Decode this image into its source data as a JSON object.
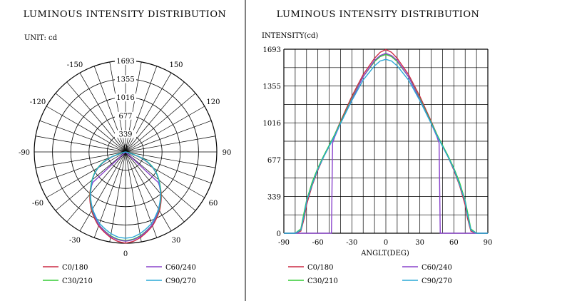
{
  "polar": {
    "title": "LUMINOUS INTENSITY DISTRIBUTION",
    "unit": "UNIT: cd",
    "radial_ticks": [
      "339",
      "677",
      "1016",
      "1355",
      "1693"
    ],
    "center_label": "0",
    "angle_labels": [
      {
        "deg": -150,
        "text": "-150"
      },
      {
        "deg": 150,
        "text": "150"
      },
      {
        "deg": -120,
        "text": "-120"
      },
      {
        "deg": 120,
        "text": "120"
      },
      {
        "deg": -90,
        "text": "-90"
      },
      {
        "deg": 90,
        "text": "90"
      },
      {
        "deg": -60,
        "text": "-60"
      },
      {
        "deg": 60,
        "text": "60"
      },
      {
        "deg": -30,
        "text": "-30"
      },
      {
        "deg": 30,
        "text": "30"
      },
      {
        "deg": 0,
        "text": "0"
      }
    ]
  },
  "cartesian": {
    "title": "LUMINOUS INTENSITY DISTRIBUTION",
    "ylabel": "INTENSITY(cd)",
    "xlabel": "ANGLT(DEG)",
    "xticks": [
      "-90",
      "-60",
      "-30",
      "0",
      "30",
      "60",
      "90"
    ],
    "yticks": [
      "0",
      "339",
      "677",
      "1016",
      "1355",
      "1693"
    ]
  },
  "legend": [
    {
      "name": "C0/180",
      "color": "#cc2a44"
    },
    {
      "name": "C60/240",
      "color": "#8a44cc"
    },
    {
      "name": "C30/210",
      "color": "#33cc33"
    },
    {
      "name": "C90/270",
      "color": "#2aa8d6"
    }
  ],
  "chart_data": {
    "type": "line",
    "title": "LUMINOUS INTENSITY DISTRIBUTION",
    "xlabel": "ANGLT(DEG)",
    "ylabel": "INTENSITY(cd)",
    "xlim": [
      -90,
      90
    ],
    "ylim": [
      0,
      1693
    ],
    "grid": true,
    "legend_position": "bottom",
    "series": [
      {
        "name": "C0/180",
        "color": "#cc2a44",
        "x": [
          -90,
          -80,
          -75,
          -72,
          -70,
          -65,
          -60,
          -55,
          -50,
          -45,
          -40,
          -30,
          -20,
          -10,
          -5,
          0,
          5,
          10,
          20,
          30,
          40,
          45,
          50,
          55,
          60,
          65,
          70,
          72,
          75,
          80,
          90
        ],
        "y": [
          0,
          0,
          20,
          140,
          260,
          440,
          580,
          700,
          800,
          910,
          1030,
          1260,
          1460,
          1610,
          1665,
          1690,
          1665,
          1610,
          1460,
          1260,
          1030,
          910,
          800,
          700,
          580,
          440,
          260,
          140,
          20,
          0,
          0
        ]
      },
      {
        "name": "C30/210",
        "color": "#33cc33",
        "x": [
          -90,
          -80,
          -75,
          -72,
          -70,
          -65,
          -60,
          -55,
          -50,
          -45,
          -40,
          -30,
          -20,
          -10,
          -5,
          0,
          5,
          10,
          20,
          30,
          40,
          45,
          50,
          55,
          60,
          65,
          70,
          72,
          75,
          80,
          90
        ],
        "y": [
          0,
          0,
          40,
          200,
          300,
          470,
          600,
          710,
          810,
          910,
          1020,
          1240,
          1440,
          1580,
          1625,
          1645,
          1625,
          1580,
          1440,
          1240,
          1020,
          910,
          810,
          710,
          600,
          470,
          300,
          200,
          40,
          0,
          0
        ]
      },
      {
        "name": "C60/240",
        "color": "#8a44cc",
        "x": [
          -90,
          -50,
          -48,
          -47,
          -45,
          -40,
          -30,
          -20,
          -10,
          -5,
          0,
          5,
          10,
          20,
          30,
          40,
          45,
          47,
          48,
          50,
          90
        ],
        "y": [
          0,
          0,
          0,
          830,
          890,
          1010,
          1230,
          1440,
          1590,
          1635,
          1655,
          1635,
          1590,
          1440,
          1230,
          1010,
          890,
          830,
          0,
          0,
          0
        ]
      },
      {
        "name": "C90/270",
        "color": "#2aa8d6",
        "x": [
          -90,
          -80,
          -75,
          -72,
          -70,
          -65,
          -60,
          -55,
          -50,
          -45,
          -40,
          -30,
          -20,
          -10,
          -5,
          0,
          5,
          10,
          20,
          30,
          40,
          45,
          50,
          55,
          60,
          65,
          70,
          72,
          75,
          80,
          90
        ],
        "y": [
          0,
          0,
          30,
          170,
          290,
          450,
          590,
          700,
          800,
          900,
          1010,
          1220,
          1410,
          1540,
          1585,
          1600,
          1585,
          1540,
          1410,
          1220,
          1010,
          900,
          800,
          700,
          590,
          450,
          290,
          170,
          30,
          0,
          0
        ]
      }
    ]
  }
}
